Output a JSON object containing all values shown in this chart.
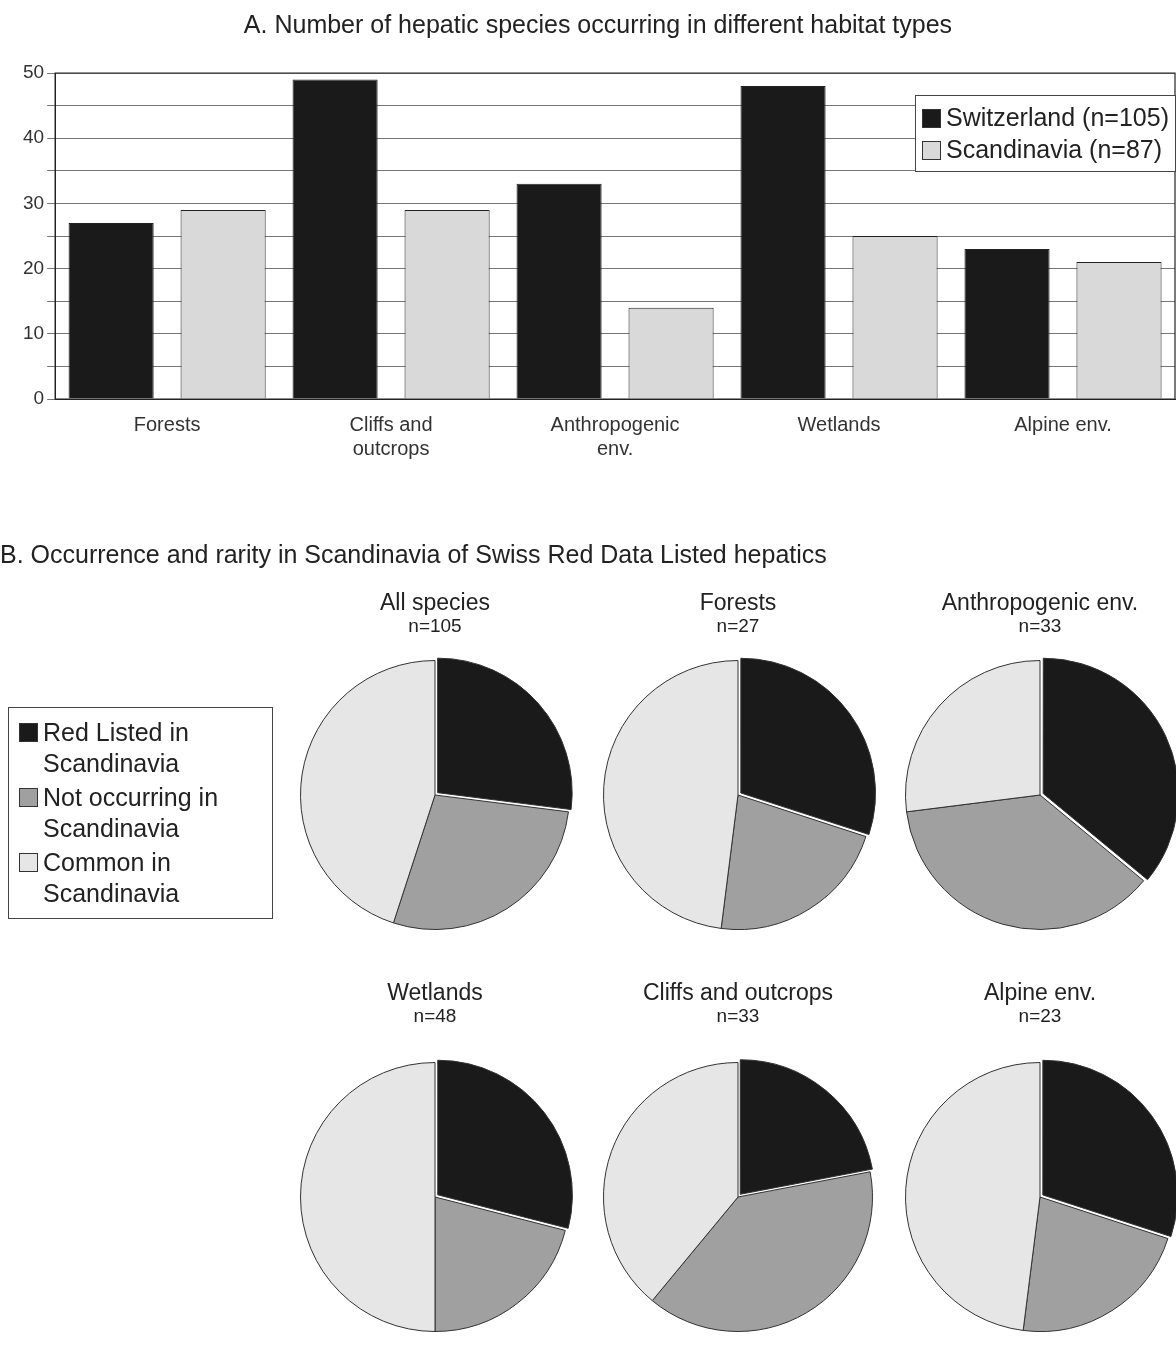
{
  "chart_data": [
    {
      "type": "bar",
      "title": "A. Number of hepatic species occurring in different habitat types",
      "categories": [
        "Forests",
        "Cliffs and outcrops",
        "Anthropogenic env.",
        "Wetlands",
        "Alpine env."
      ],
      "series": [
        {
          "name": "Switzerland (n=105)",
          "color": "#1a1a1a",
          "values": [
            27,
            49,
            33,
            48,
            23
          ]
        },
        {
          "name": "Scandinavia (n=87)",
          "color": "#d9d9d9",
          "values": [
            29,
            29,
            14,
            25,
            21
          ]
        }
      ],
      "ylim": [
        0,
        50
      ],
      "yticks": [
        0,
        {
          "value": 5,
          "label": null
        },
        10,
        {
          "value": 15,
          "label": null
        },
        20,
        {
          "value": 25,
          "label": null
        },
        30,
        {
          "value": 35,
          "label": null
        },
        40,
        {
          "value": 45,
          "label": null
        },
        50
      ],
      "grid": "y",
      "legend": "top right"
    },
    {
      "type": "pie",
      "title": "All species",
      "subtitle": "n=105",
      "annotations": [
        "B. Occurrence and rarity in Scandinavia of Swiss Red Data Listed hepatics"
      ],
      "categories": [
        "Red Listed in Scandinavia",
        "Not occurring in Scandinavia",
        "Common in Scandinavia"
      ],
      "values": [
        27,
        28,
        45
      ],
      "colors": [
        "#1a1a1a",
        "#a0a0a0",
        "#e6e6e6"
      ],
      "legend": "left"
    },
    {
      "type": "pie",
      "title": "Forests",
      "subtitle": "n=27",
      "categories": [
        null,
        null,
        null
      ],
      "values": [
        30,
        22,
        48
      ],
      "colors": [
        "#1a1a1a",
        "#a0a0a0",
        "#e6e6e6"
      ]
    },
    {
      "type": "pie",
      "title": "Anthropogenic env.",
      "subtitle": "n=33",
      "categories": [
        null,
        null,
        null
      ],
      "values": [
        36,
        37,
        27
      ],
      "colors": [
        "#1a1a1a",
        "#a0a0a0",
        "#e6e6e6"
      ]
    },
    {
      "type": "pie",
      "title": "Wetlands",
      "subtitle": "n=48",
      "categories": [
        null,
        null,
        null
      ],
      "values": [
        29,
        21,
        50
      ],
      "colors": [
        "#1a1a1a",
        "#a0a0a0",
        "#e6e6e6"
      ]
    },
    {
      "type": "pie",
      "title": "Cliffs and outcrops",
      "subtitle": "n=33",
      "categories": [
        null,
        null,
        null
      ],
      "values": [
        22,
        39,
        39
      ],
      "colors": [
        "#1a1a1a",
        "#a0a0a0",
        "#e6e6e6"
      ]
    },
    {
      "type": "pie",
      "title": "Alpine env.",
      "subtitle": "n=23",
      "categories": [
        null,
        null,
        null
      ],
      "values": [
        30,
        22,
        48
      ],
      "colors": [
        "#1a1a1a",
        "#a0a0a0",
        "#e6e6e6"
      ]
    }
  ]
}
